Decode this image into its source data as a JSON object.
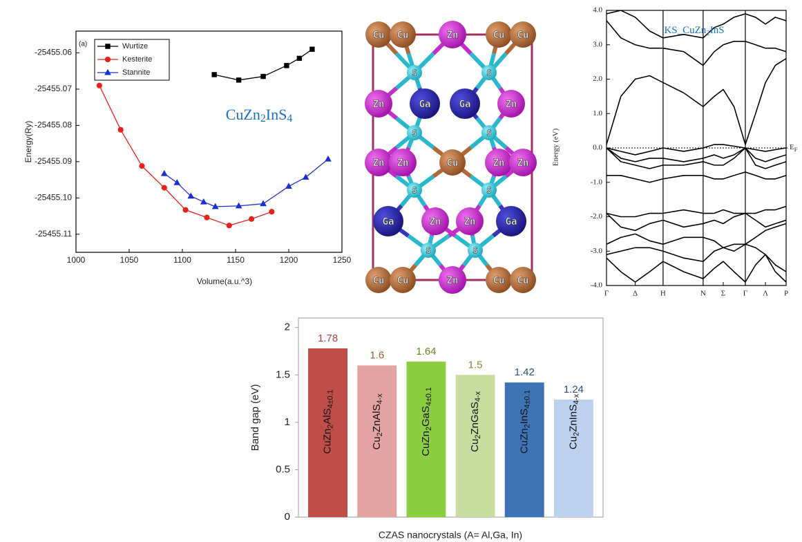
{
  "chart_data": [
    {
      "type": "line",
      "label": "(a)",
      "annotation": "CuZn2InS4",
      "xlabel": "Volume(a.u.^3)",
      "ylabel": "Energy(Ry)",
      "xlim": [
        1000,
        1250
      ],
      "xticks": [
        1000,
        1050,
        1100,
        1150,
        1200,
        1250
      ],
      "ylim": [
        -25455.115,
        -25455.054
      ],
      "yticks": [
        -25455.06,
        -25455.07,
        -25455.08,
        -25455.09,
        {
          "value": -25455.1,
          "label": "-25455.10"
        },
        -25455.11
      ],
      "legend": "upper left",
      "series": [
        {
          "name": "Wurtize",
          "color": "#000000",
          "marker": "square",
          "x": [
            1130,
            1153,
            1176,
            1198,
            1210,
            1222
          ],
          "values": [
            -25455.066,
            -25455.0675,
            -25455.0665,
            -25455.0635,
            -25455.0615,
            -25455.059
          ]
        },
        {
          "name": "Kesterite",
          "color": "#e8211c",
          "marker": "circle",
          "x": [
            1022,
            1042,
            1062,
            1083,
            1103,
            1123,
            1144,
            1165,
            1184
          ],
          "values": [
            -25455.069,
            -25455.0812,
            -25455.0912,
            -25455.0972,
            -25455.1033,
            -25455.1054,
            -25455.1076,
            -25455.1058,
            -25455.1038
          ]
        },
        {
          "name": "Stannite",
          "color": "#1c2fd0",
          "marker": "triangle",
          "x": [
            1083,
            1095,
            1108,
            1120,
            1131,
            1153,
            1176,
            1200,
            1216,
            1237
          ],
          "values": [
            -25455.0933,
            -25455.0958,
            -25455.0995,
            -25455.1011,
            -25455.1024,
            -25455.1022,
            -25455.1016,
            -25455.0968,
            -25455.0943,
            -25455.0893
          ]
        }
      ]
    },
    {
      "type": "line",
      "annotation": "KS_CuZn2InS",
      "ylabel": "Energy (eV)",
      "fermi_level": 0,
      "fermi_label": "EF",
      "xlim": [
        0,
        1
      ],
      "xticks": [
        {
          "value": 0,
          "label": "Γ"
        },
        {
          "value": 0.16,
          "label": "Δ"
        },
        {
          "value": 0.315,
          "label": "H",
          "line": true
        },
        {
          "value": 0.538,
          "label": "N",
          "line": true
        },
        {
          "value": 0.65,
          "label": "Σ"
        },
        {
          "value": 0.773,
          "label": "Γ",
          "line": true
        },
        {
          "value": 0.885,
          "label": "Λ"
        },
        {
          "value": 1,
          "label": "P"
        }
      ],
      "ylim": [
        -4,
        4
      ],
      "yticks": [
        {
          "value": 4,
          "label": "4.0"
        },
        {
          "value": 3,
          "label": "3.0"
        },
        {
          "value": 2,
          "label": "2.0"
        },
        {
          "value": 1,
          "label": "1.0"
        },
        {
          "value": 0,
          "label": "0.0"
        },
        {
          "value": -1,
          "label": "-1.0"
        },
        {
          "value": -2,
          "label": "-2.0"
        },
        {
          "value": -3,
          "label": "-3.0"
        },
        {
          "value": -4,
          "label": "-4.0"
        }
      ],
      "x": [
        0,
        0.08,
        0.16,
        0.24,
        0.315,
        0.43,
        0.538,
        0.6,
        0.65,
        0.71,
        0.773,
        0.83,
        0.885,
        0.94,
        1
      ],
      "series": [
        {
          "color": "#000000",
          "values": [
            0.1,
            1.5,
            2.0,
            2.1,
            1.9,
            1.6,
            1.2,
            1.5,
            1.7,
            1.2,
            0.1,
            1.0,
            1.9,
            2.4,
            2.6
          ]
        },
        {
          "color": "#000000",
          "values": [
            3.7,
            3.2,
            3.0,
            2.9,
            2.9,
            2.8,
            2.4,
            2.8,
            3.0,
            3.1,
            3.1,
            3.0,
            2.9,
            2.9,
            2.8
          ]
        },
        {
          "color": "#000000",
          "values": [
            3.9,
            4.0,
            3.8,
            3.4,
            3.2,
            3.3,
            3.2,
            3.5,
            3.6,
            3.8,
            3.9,
            3.8,
            3.6,
            3.8,
            3.7
          ]
        },
        {
          "color": "#000000",
          "values": [
            0.0,
            -0.1,
            -0.2,
            -0.1,
            0.0,
            -0.1,
            0.0,
            0.1,
            0.1,
            0.05,
            0.0,
            -0.05,
            -0.1,
            -0.05,
            0.0
          ]
        },
        {
          "color": "#000000",
          "values": [
            0.0,
            -0.3,
            -0.4,
            -0.3,
            -0.3,
            -0.4,
            -0.3,
            -0.2,
            -0.3,
            -0.2,
            0.0,
            -0.3,
            -0.4,
            -0.3,
            -0.2
          ]
        },
        {
          "color": "#000000",
          "values": [
            0.0,
            -0.4,
            -0.5,
            -0.6,
            -0.5,
            -0.5,
            -0.4,
            -0.5,
            -0.5,
            -0.3,
            0.0,
            -0.5,
            -0.6,
            -0.5,
            -0.4
          ]
        },
        {
          "color": "#000000",
          "values": [
            -0.8,
            -0.8,
            -0.9,
            -1.0,
            -0.9,
            -0.8,
            -0.8,
            -0.9,
            -0.9,
            -0.8,
            -0.7,
            -0.8,
            -0.9,
            -0.9,
            -0.8
          ]
        },
        {
          "color": "#000000",
          "values": [
            -1.9,
            -2.0,
            -2.0,
            -1.9,
            -1.9,
            -1.8,
            -1.9,
            -1.9,
            -1.8,
            -1.9,
            -1.9,
            -1.9,
            -1.8,
            -1.8,
            -1.7
          ]
        },
        {
          "color": "#000000",
          "values": [
            -1.9,
            -2.3,
            -2.4,
            -2.2,
            -2.1,
            -2.3,
            -2.2,
            -2.1,
            -2.2,
            -2.0,
            -1.9,
            -2.1,
            -2.3,
            -2.2,
            -2.1
          ]
        },
        {
          "color": "#000000",
          "values": [
            -2.8,
            -2.6,
            -2.5,
            -2.7,
            -2.8,
            -2.6,
            -2.6,
            -2.7,
            -2.9,
            -2.8,
            -2.8,
            -2.6,
            -2.4,
            -2.3,
            -2.2
          ]
        },
        {
          "color": "#000000",
          "values": [
            -3.1,
            -3.0,
            -2.9,
            -2.9,
            -3.0,
            -3.2,
            -3.3,
            -3.0,
            -2.9,
            -3.0,
            -2.8,
            -2.9,
            -3.1,
            -3.4,
            -3.6
          ]
        },
        {
          "color": "#000000",
          "values": [
            -3.2,
            -3.6,
            -3.9,
            -3.6,
            -3.3,
            -3.6,
            -3.8,
            -3.5,
            -3.3,
            -3.6,
            -3.9,
            -3.4,
            -3.1,
            -3.6,
            -3.9
          ]
        }
      ]
    },
    {
      "type": "bar",
      "xlabel": "CZAS nanocrystals (A= Al,Ga, In)",
      "ylabel": "Band gap (eV)",
      "categories": [
        "CuZn2AlS4±0.1",
        "Cu2ZnAlS4-x",
        "CuZn2GaS4±0.1",
        "Cu2ZnGaS4-x",
        "CuZn2InS4±0.1",
        "Cu2ZnInS4-x"
      ],
      "values": [
        1.78,
        1.6,
        1.64,
        1.5,
        1.42,
        1.24
      ],
      "colors": [
        "#bf4d4a",
        "#e3a3a2",
        "#8ccd42",
        "#c7dc9f",
        "#3e74b6",
        "#bcd2ee"
      ],
      "label_colors": [
        "#a8423f",
        "#9e5a3a",
        "#5f8a22",
        "#7a8a3a",
        "#2c4f82",
        "#2c4f82"
      ],
      "ylim": [
        0,
        2.1
      ],
      "yticks": [
        0,
        0.5,
        1,
        1.5,
        2
      ]
    }
  ],
  "structure": {
    "atoms": [
      "Cu",
      "Cu",
      "Zn",
      "Cu",
      "Cu",
      "S",
      "S",
      "Zn",
      "Ga",
      "Ga",
      "Zn",
      "S",
      "S",
      "Zn",
      "Zn",
      "Cu",
      "Zn",
      "Zn",
      "S",
      "S",
      "Ga",
      "Zn",
      "Zn",
      "Ga",
      "S",
      "S",
      "Cu",
      "Cu",
      "Zn",
      "Cu",
      "Cu"
    ]
  }
}
